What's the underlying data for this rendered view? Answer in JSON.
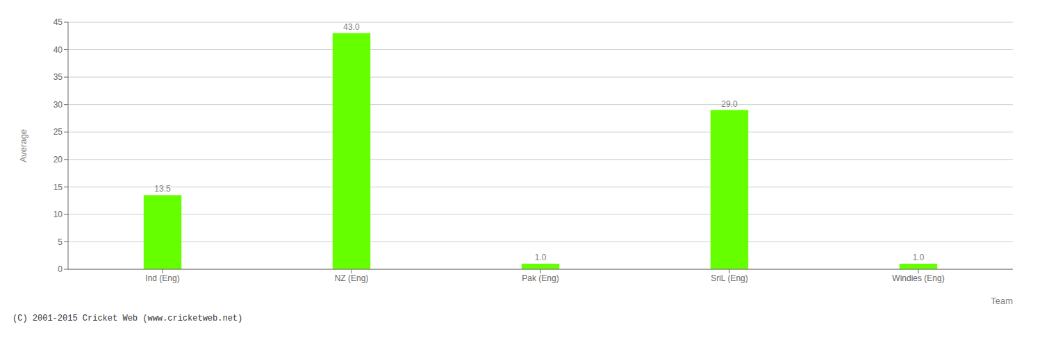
{
  "chart_data": {
    "type": "bar",
    "categories": [
      "Ind (Eng)",
      "NZ (Eng)",
      "Pak (Eng)",
      "SriL (Eng)",
      "Windies (Eng)"
    ],
    "values": [
      13.5,
      43.0,
      1.0,
      29.0,
      1.0
    ],
    "value_labels": [
      "13.5",
      "43.0",
      "1.0",
      "29.0",
      "1.0"
    ],
    "data_labels": true,
    "color": "#66ff00",
    "xlabel": "Team",
    "ylabel": "Average",
    "ylim": [
      0,
      45
    ],
    "yticks": [
      0,
      5,
      10,
      15,
      20,
      25,
      30,
      35,
      40,
      45
    ],
    "grid": true,
    "annotations": [
      "(C) 2001-2015 Cricket Web (www.cricketweb.net)"
    ]
  }
}
